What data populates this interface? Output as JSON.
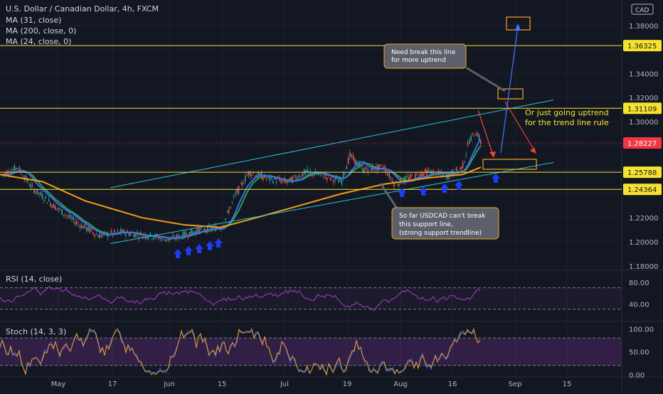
{
  "header": {
    "title": "U.S. Dollar / Canadian Dollar, 4h, FXCM",
    "ma_labels": [
      "MA (31, close)",
      "MA (200, close, 0)",
      "MA (24, close, 0)"
    ]
  },
  "currency": "CAD",
  "annotations": {
    "callout_top": [
      "Need break this line",
      "for more uptrend"
    ],
    "callout_right": [
      "Or just going uptrend",
      "for the trend line rule"
    ],
    "callout_bottom": [
      "So far USDCAD can't break",
      "this support line,",
      "(strong support trendline)"
    ]
  },
  "colors": {
    "background": "#131722",
    "grid": "#1e2230",
    "text": "#b2b5be",
    "level_line": "#f5e32f",
    "current_price": "#f23645",
    "trend_line": "#26c6da",
    "ma_blue": "#3a6df0",
    "ma_green": "#2e9e4f",
    "ma_orange": "#f39c12",
    "oscillator": "#a33fc4",
    "callout_fill": "#5d606b",
    "callout_border": "#f5a623",
    "arrow_blue": "#1e3cf0",
    "arrow_red": "#e8453c"
  },
  "chart_data": [
    {
      "type": "candlestick",
      "symbol": "USDCAD",
      "timeframe": "4h",
      "x_ticks": [
        "May",
        "17",
        "Jun",
        "15",
        "Jul",
        "19",
        "Aug",
        "16",
        "Sep",
        "15"
      ],
      "y_ticks": [
        "1.38000",
        "1.36000",
        "1.34000",
        "1.32000",
        "1.30000",
        "1.28000",
        "1.26000",
        "1.24000",
        "1.22000",
        "1.20000",
        "1.18000"
      ],
      "ylim": [
        1.17,
        1.385
      ],
      "grid": true,
      "horizontal_levels": [
        {
          "label": "1.36325",
          "value": 1.36325
        },
        {
          "label": "1.31109",
          "value": 1.31109
        },
        {
          "label": "1.25788",
          "value": 1.25788
        },
        {
          "label": "1.24364",
          "value": 1.24364
        }
      ],
      "current_price": {
        "label": "1.28227",
        "value": 1.28227
      },
      "trend_channel": {
        "upper": [
          {
            "x": "late Apr",
            "y": 1.245
          },
          {
            "x": "mid Sep",
            "y": 1.318
          }
        ],
        "lower": [
          {
            "x": "May 10",
            "y": 1.198
          },
          {
            "x": "mid Sep",
            "y": 1.266
          }
        ]
      }
    },
    {
      "type": "line",
      "name": "RSI (14, close)",
      "y_ticks": [
        "80.00",
        "40.00"
      ],
      "levels": [
        70,
        30
      ]
    },
    {
      "type": "line",
      "name": "Stoch (14, 3, 3)",
      "y_ticks": [
        "100.00",
        "50.00",
        "0.00"
      ],
      "levels": [
        80,
        20
      ]
    }
  ]
}
